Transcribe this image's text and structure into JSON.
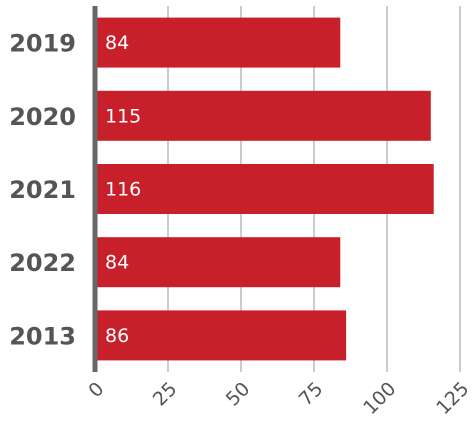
{
  "chart_data": {
    "type": "bar",
    "orientation": "horizontal",
    "categories": [
      "2019",
      "2020",
      "2021",
      "2022",
      "2013"
    ],
    "values": [
      84,
      115,
      116,
      84,
      86
    ],
    "color": "#c8202a",
    "xlim": [
      0,
      125
    ],
    "xticks": [
      0,
      25,
      50,
      75,
      100,
      125
    ],
    "grid": true
  }
}
